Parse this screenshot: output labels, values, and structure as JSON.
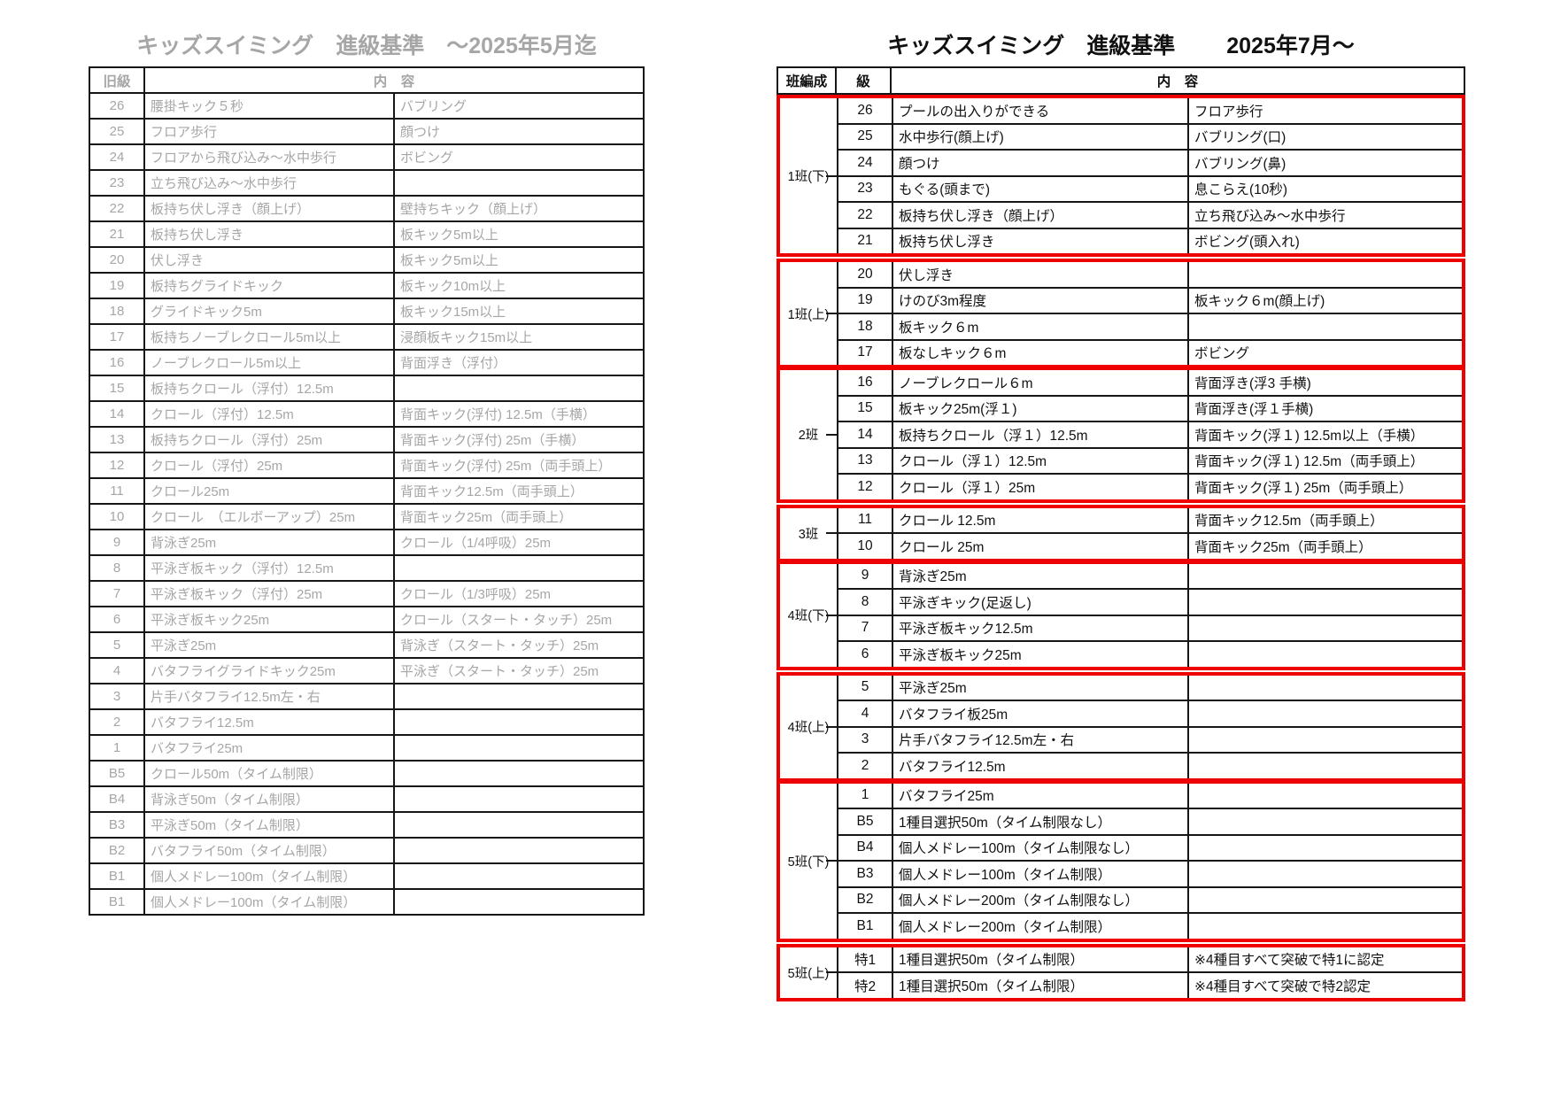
{
  "colors": {
    "accent_red": "#ee0000",
    "muted_gray": "#a6a6a6",
    "border_black": "#161616"
  },
  "left_table": {
    "title": "キッズスイミング　進級基準　～2025年5月迄",
    "header": {
      "level": "旧級",
      "content": "内　容"
    },
    "rows": [
      {
        "level": "26",
        "c1": "腰掛キック５秒",
        "c2": "バブリング"
      },
      {
        "level": "25",
        "c1": "フロア歩行",
        "c2": "顔つけ"
      },
      {
        "level": "24",
        "c1": "フロアから飛び込み～水中歩行",
        "c2": "ボビング"
      },
      {
        "level": "23",
        "c1": "立ち飛び込み～水中歩行",
        "c2": ""
      },
      {
        "level": "22",
        "c1": "板持ち伏し浮き（顔上げ）",
        "c2": "壁持ちキック（顔上げ）"
      },
      {
        "level": "21",
        "c1": "板持ち伏し浮き",
        "c2": "板キック5m以上"
      },
      {
        "level": "20",
        "c1": "伏し浮き",
        "c2": "板キック5m以上"
      },
      {
        "level": "19",
        "c1": "板持ちグライドキック",
        "c2": "板キック10m以上"
      },
      {
        "level": "18",
        "c1": "グライドキック5m",
        "c2": "板キック15m以上"
      },
      {
        "level": "17",
        "c1": "板持ちノーブレクロール5m以上",
        "c2": "浸顔板キック15m以上"
      },
      {
        "level": "16",
        "c1": "ノーブレクロール5m以上",
        "c2": "背面浮き（浮付）"
      },
      {
        "level": "15",
        "c1": "板持ちクロール（浮付）12.5m",
        "c2": ""
      },
      {
        "level": "14",
        "c1": "クロール（浮付）12.5m",
        "c2": "背面キック(浮付) 12.5m（手横）"
      },
      {
        "level": "13",
        "c1": "板持ちクロール（浮付）25m",
        "c2": "背面キック(浮付) 25m（手横）"
      },
      {
        "level": "12",
        "c1": "クロール（浮付）25m",
        "c2": "背面キック(浮付) 25m（両手頭上）"
      },
      {
        "level": "11",
        "c1": "クロール25m",
        "c2": "背面キック12.5m（両手頭上）"
      },
      {
        "level": "10",
        "c1": "クロール　（エルボーアップ）25m",
        "c2": "背面キック25m（両手頭上）"
      },
      {
        "level": "9",
        "c1": "背泳ぎ25m",
        "c2": "クロール（1/4呼吸）25m"
      },
      {
        "level": "8",
        "c1": "平泳ぎ板キック（浮付）12.5m",
        "c2": ""
      },
      {
        "level": "7",
        "c1": "平泳ぎ板キック（浮付）25m",
        "c2": "クロール（1/3呼吸）25m"
      },
      {
        "level": "6",
        "c1": "平泳ぎ板キック25m",
        "c2": "クロール（スタート・タッチ）25m"
      },
      {
        "level": "5",
        "c1": "平泳ぎ25m",
        "c2": "背泳ぎ（スタート・タッチ）25m"
      },
      {
        "level": "4",
        "c1": "バタフライグライドキック25m",
        "c2": "平泳ぎ（スタート・タッチ）25m"
      },
      {
        "level": "3",
        "c1": "片手バタフライ12.5m左・右",
        "c2": ""
      },
      {
        "level": "2",
        "c1": "バタフライ12.5m",
        "c2": ""
      },
      {
        "level": "1",
        "c1": "バタフライ25m",
        "c2": ""
      },
      {
        "level": "B5",
        "c1": "クロール50m（タイム制限）",
        "c2": ""
      },
      {
        "level": "B4",
        "c1": "背泳ぎ50m（タイム制限）",
        "c2": ""
      },
      {
        "level": "B3",
        "c1": "平泳ぎ50m（タイム制限）",
        "c2": ""
      },
      {
        "level": "B2",
        "c1": "バタフライ50m（タイム制限）",
        "c2": ""
      },
      {
        "level": "B1",
        "c1": "個人メドレー100m（タイム制限）",
        "c2": ""
      },
      {
        "level": "B1",
        "c1": "個人メドレー100m（タイム制限）",
        "c2": ""
      }
    ]
  },
  "right_table": {
    "title_main": "キッズスイミング　進級基準",
    "title_date": "2025年7月～",
    "header": {
      "group": "班編成",
      "level": "級",
      "content": "内　容"
    },
    "groups": [
      {
        "name": "1班(下)",
        "rows": [
          {
            "level": "26",
            "c1": "プールの出入りができる",
            "c2": "フロア歩行"
          },
          {
            "level": "25",
            "c1": "水中歩行(顔上げ)",
            "c2": "バブリング(口)"
          },
          {
            "level": "24",
            "c1": "顔つけ",
            "c2": "バブリング(鼻)"
          },
          {
            "level": "23",
            "c1": "もぐる(頭まで)",
            "c2": "息こらえ(10秒)"
          },
          {
            "level": "22",
            "c1": "板持ち伏し浮き（顔上げ）",
            "c2": "立ち飛び込み～水中歩行"
          },
          {
            "level": "21",
            "c1": "板持ち伏し浮き",
            "c2": "ボビング(頭入れ)"
          }
        ]
      },
      {
        "name": "1班(上)",
        "rows": [
          {
            "level": "20",
            "c1": "伏し浮き",
            "c2": ""
          },
          {
            "level": "19",
            "c1": "けのび3m程度",
            "c2": "板キック６m(顔上げ)"
          },
          {
            "level": "18",
            "c1": "板キック６m",
            "c2": ""
          },
          {
            "level": "17",
            "c1": "板なしキック６m",
            "c2": "ボビング"
          }
        ]
      },
      {
        "name": "2班",
        "rows": [
          {
            "level": "16",
            "c1": "ノーブレクロール６m",
            "c2": "背面浮き(浮3 手横)"
          },
          {
            "level": "15",
            "c1": "板キック25m(浮１)",
            "c2": "背面浮き(浮１手横)"
          },
          {
            "level": "14",
            "c1": "板持ちクロール（浮１）12.5m",
            "c2": "背面キック(浮１) 12.5m以上（手横）"
          },
          {
            "level": "13",
            "c1": "クロール（浮１）12.5m",
            "c2": "背面キック(浮１) 12.5m（両手頭上）"
          },
          {
            "level": "12",
            "c1": "クロール（浮１）25m",
            "c2": "背面キック(浮１) 25m（両手頭上）"
          }
        ]
      },
      {
        "name": "3班",
        "rows": [
          {
            "level": "11",
            "c1": "クロール 12.5m",
            "c2": "背面キック12.5m（両手頭上）"
          },
          {
            "level": "10",
            "c1": "クロール 25m",
            "c2": "背面キック25m（両手頭上）"
          }
        ]
      },
      {
        "name": "4班(下)",
        "rows": [
          {
            "level": "9",
            "c1": "背泳ぎ25m",
            "c2": ""
          },
          {
            "level": "8",
            "c1": "平泳ぎキック(足返し)",
            "c2": ""
          },
          {
            "level": "7",
            "c1": "平泳ぎ板キック12.5m",
            "c2": ""
          },
          {
            "level": "6",
            "c1": "平泳ぎ板キック25m",
            "c2": ""
          }
        ]
      },
      {
        "name": "4班(上)",
        "rows": [
          {
            "level": "5",
            "c1": "平泳ぎ25m",
            "c2": ""
          },
          {
            "level": "4",
            "c1": "バタフライ板25m",
            "c2": ""
          },
          {
            "level": "3",
            "c1": "片手バタフライ12.5m左・右",
            "c2": ""
          },
          {
            "level": "2",
            "c1": "バタフライ12.5m",
            "c2": ""
          }
        ]
      },
      {
        "name": "5班(下)",
        "rows": [
          {
            "level": "1",
            "c1": "バタフライ25m",
            "c2": ""
          },
          {
            "level": "B5",
            "c1": "1種目選択50m（タイム制限なし）",
            "c2": ""
          },
          {
            "level": "B4",
            "c1": "個人メドレー100m（タイム制限なし）",
            "c2": ""
          },
          {
            "level": "B3",
            "c1": "個人メドレー100m（タイム制限）",
            "c2": ""
          },
          {
            "level": "B2",
            "c1": "個人メドレー200m（タイム制限なし）",
            "c2": ""
          },
          {
            "level": "B1",
            "c1": "個人メドレー200m（タイム制限）",
            "c2": ""
          }
        ]
      },
      {
        "name": "5班(上)",
        "rows": [
          {
            "level": "特1",
            "c1": "1種目選択50m（タイム制限）",
            "c2": "※4種目すべて突破で特1に認定"
          },
          {
            "level": "特2",
            "c1": "1種目選択50m（タイム制限）",
            "c2": "※4種目すべて突破で特2認定"
          }
        ]
      }
    ]
  }
}
